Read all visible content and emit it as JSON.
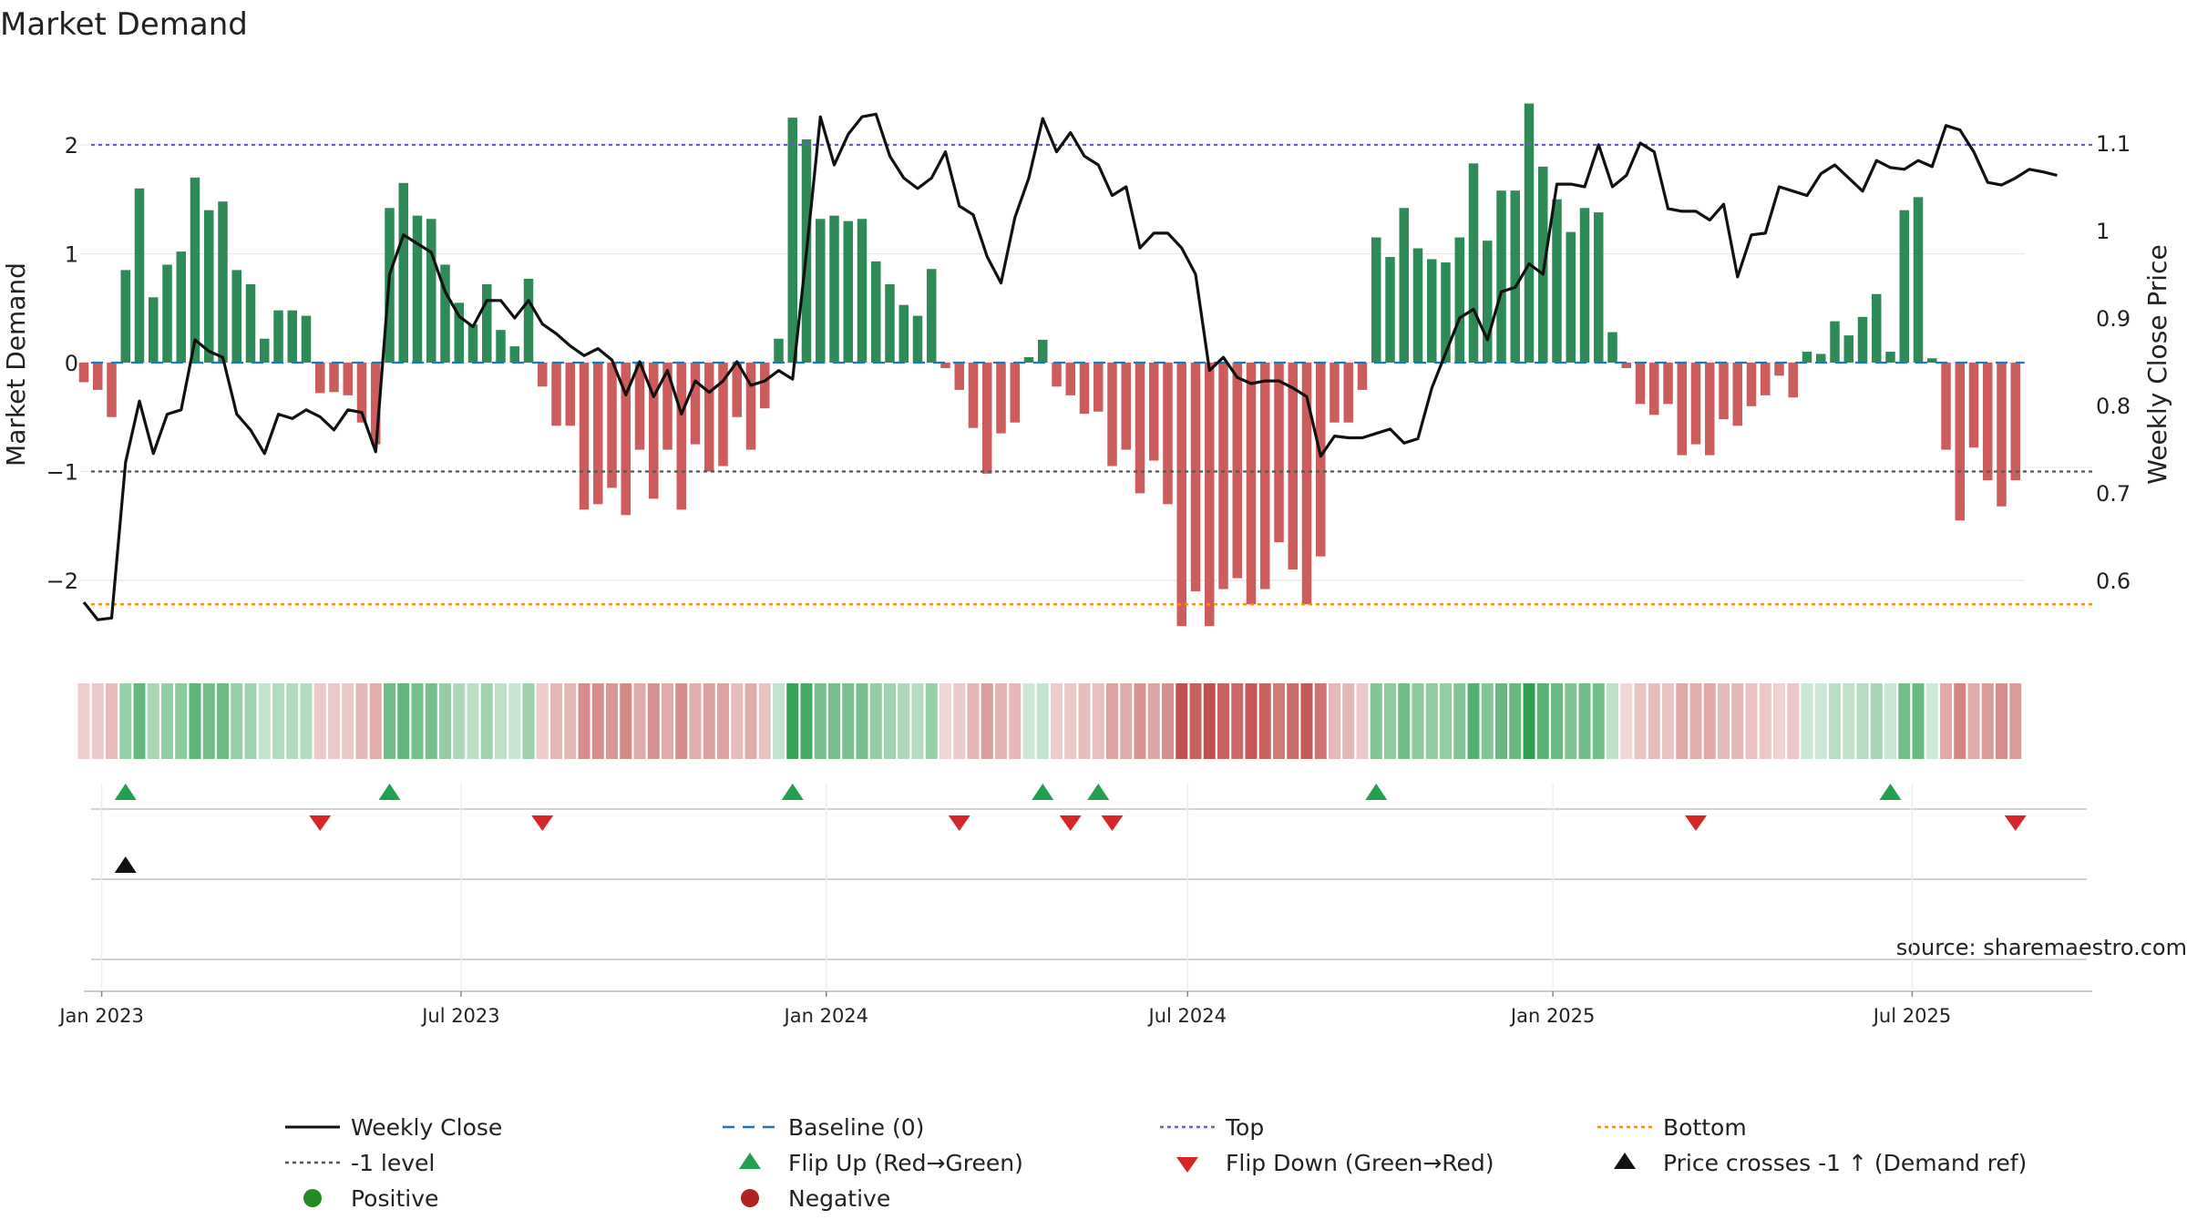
{
  "chart_data": {
    "type": "bar",
    "title": "Market Demand",
    "ylabel_left": "Market Demand",
    "ylabel_right": "Weekly Close Price",
    "left_axis": {
      "ylim": [
        -2.65,
        2.65
      ],
      "ticks": [
        2,
        1,
        0,
        -1,
        -2
      ],
      "tick_labels": [
        "2",
        "1",
        "0",
        "−1",
        "−2"
      ]
    },
    "right_axis": {
      "ylim": [
        0.533,
        1.183
      ],
      "ticks": [
        1.1,
        1.0,
        0.9,
        0.8,
        0.7,
        0.6
      ],
      "tick_labels": [
        "1.1",
        "1",
        "0.9",
        "0.8",
        "0.7",
        "0.6"
      ]
    },
    "x_axis": {
      "start_date": "2022-12-23",
      "end_date": "2025-09-05",
      "ticks": [
        {
          "date": "2023-01-01",
          "label": "Jan 2023"
        },
        {
          "date": "2023-07-01",
          "label": "Jul 2023"
        },
        {
          "date": "2024-01-01",
          "label": "Jan 2024"
        },
        {
          "date": "2024-07-01",
          "label": "Jul 2024"
        },
        {
          "date": "2025-01-01",
          "label": "Jan 2025"
        },
        {
          "date": "2025-07-01",
          "label": "Jul 2025"
        }
      ]
    },
    "reference_lines": {
      "baseline": 0,
      "top": 2.0,
      "minus_one": -1.0,
      "bottom": -2.22
    },
    "demand_weekly": [
      -0.18,
      -0.25,
      -0.5,
      0.85,
      1.6,
      0.6,
      0.9,
      1.02,
      1.7,
      1.4,
      1.48,
      0.85,
      0.72,
      0.22,
      0.48,
      0.48,
      0.43,
      -0.28,
      -0.27,
      -0.3,
      -0.55,
      -0.75,
      1.42,
      1.65,
      1.35,
      1.32,
      0.9,
      0.55,
      0.35,
      0.72,
      0.3,
      0.15,
      0.77,
      -0.22,
      -0.58,
      -0.58,
      -1.35,
      -1.3,
      -1.15,
      -1.4,
      -0.8,
      -1.25,
      -0.8,
      -1.35,
      -0.75,
      -1.0,
      -0.95,
      -0.5,
      -0.8,
      -0.42,
      0.22,
      2.25,
      2.05,
      1.32,
      1.35,
      1.3,
      1.32,
      0.93,
      0.72,
      0.53,
      0.43,
      0.86,
      -0.05,
      -0.25,
      -0.6,
      -1.02,
      -0.65,
      -0.55,
      0.05,
      0.21,
      -0.22,
      -0.3,
      -0.47,
      -0.45,
      -0.95,
      -0.8,
      -1.2,
      -0.9,
      -1.3,
      -2.42,
      -2.1,
      -2.42,
      -2.08,
      -1.98,
      -2.22,
      -2.08,
      -1.65,
      -1.9,
      -2.22,
      -1.78,
      -0.55,
      -0.55,
      -0.25,
      1.15,
      0.97,
      1.42,
      1.05,
      0.95,
      0.92,
      1.15,
      1.83,
      1.12,
      1.58,
      1.58,
      2.38,
      1.8,
      1.5,
      1.2,
      1.42,
      1.38,
      0.28,
      -0.05,
      -0.38,
      -0.48,
      -0.38,
      -0.85,
      -0.75,
      -0.85,
      -0.52,
      -0.58,
      -0.4,
      -0.3,
      -0.12,
      -0.32,
      0.1,
      0.08,
      0.38,
      0.25,
      0.42,
      0.63,
      0.1,
      1.4,
      1.52,
      0.04,
      -0.8,
      -1.45,
      -0.78,
      -1.08,
      -1.32,
      -1.08
    ],
    "weekly_close": [
      0.575,
      0.555,
      0.557,
      0.735,
      0.805,
      0.745,
      0.79,
      0.795,
      0.875,
      0.862,
      0.855,
      0.79,
      0.772,
      0.745,
      0.79,
      0.785,
      0.795,
      0.787,
      0.772,
      0.795,
      0.792,
      0.747,
      0.95,
      0.995,
      0.985,
      0.975,
      0.93,
      0.902,
      0.89,
      0.92,
      0.92,
      0.9,
      0.92,
      0.893,
      0.882,
      0.868,
      0.857,
      0.865,
      0.852,
      0.812,
      0.85,
      0.81,
      0.84,
      0.79,
      0.828,
      0.815,
      0.828,
      0.85,
      0.823,
      0.828,
      0.84,
      0.83,
      0.975,
      1.13,
      1.075,
      1.11,
      1.13,
      1.133,
      1.085,
      1.06,
      1.048,
      1.06,
      1.09,
      1.028,
      1.018,
      0.97,
      0.94,
      1.015,
      1.06,
      1.128,
      1.09,
      1.112,
      1.085,
      1.075,
      1.04,
      1.05,
      0.98,
      0.997,
      0.997,
      0.98,
      0.95,
      0.84,
      0.855,
      0.832,
      0.825,
      0.828,
      0.828,
      0.82,
      0.81,
      0.742,
      0.765,
      0.763,
      0.763,
      0.768,
      0.773,
      0.757,
      0.762,
      0.82,
      0.86,
      0.9,
      0.91,
      0.875,
      0.93,
      0.935,
      0.962,
      0.95,
      1.053,
      1.053,
      1.05,
      1.098,
      1.05,
      1.063,
      1.1,
      1.09,
      1.025,
      1.022,
      1.022,
      1.012,
      1.03,
      0.947,
      0.995,
      0.997,
      1.05,
      1.045,
      1.04,
      1.065,
      1.075,
      1.06,
      1.045,
      1.08,
      1.072,
      1.07,
      1.08,
      1.073,
      1.12,
      1.115,
      1.09,
      1.055,
      1.052,
      1.06,
      1.07,
      1.067,
      1.063
    ],
    "flip_up_weeks": [
      3,
      22,
      51,
      69,
      73,
      93,
      130
    ],
    "flip_down_weeks": [
      17,
      33,
      63,
      71,
      74,
      116,
      139
    ],
    "price_cross_weeks": [
      3
    ],
    "colors": {
      "positive_bar": "#2e8b57",
      "negative_bar": "#cd5c5c",
      "weekly_close": "#111111",
      "baseline": "#1f77b4",
      "top_line": "#6a5acd",
      "minus_one_line": "#555555",
      "bottom_line": "#ff8c00",
      "flip_up": "#22a050",
      "flip_down": "#d62728",
      "positive_dot": "#228b22",
      "negative_dot": "#b22222",
      "heat_positive": "#2e9e4f",
      "heat_negative": "#c0504d"
    },
    "source_text": "source: sharemaestro.com",
    "legend": [
      {
        "label": "Weekly Close",
        "symbol": "line-solid",
        "color": "#111111"
      },
      {
        "label": "Baseline (0)",
        "symbol": "line-dashed",
        "color": "#1f77b4"
      },
      {
        "label": "Top",
        "symbol": "line-dotted",
        "color": "#6a5acd"
      },
      {
        "label": "Bottom",
        "symbol": "line-dotted",
        "color": "#ff8c00"
      },
      {
        "label": "-1 level",
        "symbol": "line-dotted",
        "color": "#555555"
      },
      {
        "label": "Flip Up (Red→Green)",
        "symbol": "triangle-up",
        "color": "#22a050"
      },
      {
        "label": "Flip Down (Green→Red)",
        "symbol": "triangle-down",
        "color": "#d62728"
      },
      {
        "label": "Price crosses -1 ↑ (Demand ref)",
        "symbol": "triangle-up",
        "color": "#111111"
      },
      {
        "label": "Positive",
        "symbol": "dot",
        "color": "#228b22"
      },
      {
        "label": "Negative",
        "symbol": "dot",
        "color": "#b22222"
      }
    ]
  }
}
